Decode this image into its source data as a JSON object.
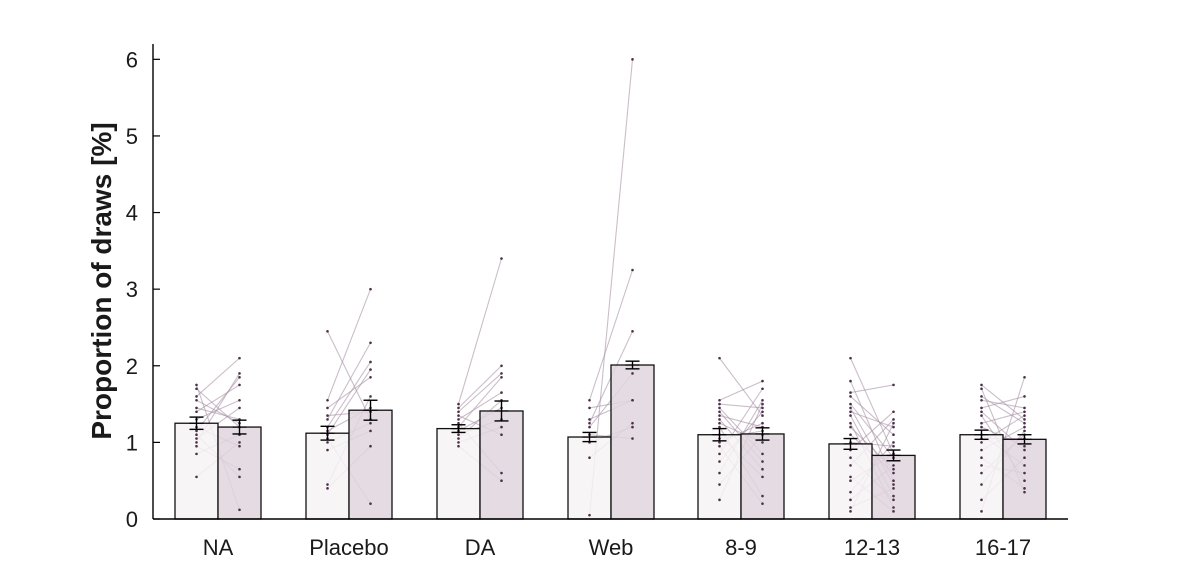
{
  "chart_data": {
    "type": "bar",
    "title": "",
    "xlabel": "",
    "ylabel": "Proportion of draws [%]",
    "ylim": [
      0,
      6.2
    ],
    "yticks": [
      0,
      1,
      2,
      3,
      4,
      5,
      6
    ],
    "categories": [
      "NA",
      "Placebo",
      "DA",
      "Web",
      "8-9",
      "12-13",
      "16-17"
    ],
    "colors": {
      "light": "#f7f3f4",
      "dark": "#e0d5de",
      "line": "#a893a6",
      "dot": "#4a2f48",
      "axis": "#000000"
    },
    "series": [
      {
        "values": [
          1.25,
          1.12,
          1.18,
          1.07,
          1.1,
          0.98,
          1.1
        ],
        "errors": [
          0.08,
          0.09,
          0.05,
          0.06,
          0.08,
          0.07,
          0.06
        ]
      },
      {
        "values": [
          1.2,
          1.42,
          1.41,
          2.01,
          1.11,
          0.83,
          1.04
        ],
        "errors": [
          0.09,
          0.13,
          0.13,
          0.05,
          0.08,
          0.07,
          0.06
        ]
      }
    ],
    "paired_points": [
      [
        [
          1.75,
          0.12
        ],
        [
          0.55,
          1.0
        ],
        [
          1.7,
          1.2
        ],
        [
          1.45,
          1.3
        ],
        [
          1.3,
          1.55
        ],
        [
          1.15,
          1.85
        ],
        [
          1.05,
          1.45
        ],
        [
          1.6,
          2.1
        ],
        [
          0.95,
          0.65
        ],
        [
          1.2,
          0.95
        ],
        [
          0.85,
          1.1
        ],
        [
          1.4,
          1.75
        ],
        [
          1.1,
          0.55
        ],
        [
          1.55,
          1.25
        ],
        [
          1.0,
          1.9
        ]
      ],
      [
        [
          2.45,
          1.3
        ],
        [
          0.45,
          1.6
        ],
        [
          1.15,
          1.45
        ],
        [
          0.4,
          0.95
        ],
        [
          1.55,
          3.0
        ],
        [
          1.3,
          2.3
        ],
        [
          1.2,
          2.05
        ],
        [
          1.0,
          1.25
        ],
        [
          1.45,
          1.85
        ],
        [
          1.05,
          0.2
        ],
        [
          1.35,
          1.4
        ],
        [
          0.9,
          1.15
        ],
        [
          1.1,
          1.95
        ]
      ],
      [
        [
          1.5,
          3.4
        ],
        [
          1.45,
          2.0
        ],
        [
          1.3,
          1.65
        ],
        [
          1.2,
          1.85
        ],
        [
          1.0,
          1.2
        ],
        [
          0.95,
          0.5
        ],
        [
          1.15,
          1.45
        ],
        [
          1.35,
          1.1
        ],
        [
          1.25,
          0.6
        ],
        [
          1.1,
          1.3
        ],
        [
          1.4,
          1.9
        ],
        [
          1.05,
          1.55
        ]
      ],
      [
        [
          0.05,
          6.0
        ],
        [
          1.55,
          3.25
        ],
        [
          1.25,
          2.45
        ],
        [
          1.45,
          1.55
        ],
        [
          0.8,
          1.25
        ],
        [
          1.0,
          1.2
        ],
        [
          1.2,
          1.9
        ],
        [
          1.1,
          1.05
        ],
        [
          1.3,
          1.55
        ]
      ],
      [
        [
          2.1,
          1.35
        ],
        [
          0.25,
          1.5
        ],
        [
          1.55,
          1.8
        ],
        [
          1.4,
          0.75
        ],
        [
          1.2,
          0.3
        ],
        [
          0.75,
          1.4
        ],
        [
          1.45,
          0.85
        ],
        [
          1.0,
          1.25
        ],
        [
          0.95,
          0.2
        ],
        [
          1.35,
          1.2
        ],
        [
          0.45,
          1.1
        ],
        [
          1.1,
          0.55
        ],
        [
          1.5,
          1.45
        ],
        [
          0.85,
          1.7
        ],
        [
          1.25,
          1.0
        ],
        [
          1.3,
          0.65
        ],
        [
          0.6,
          1.55
        ],
        [
          1.05,
          1.15
        ]
      ],
      [
        [
          2.1,
          0.85
        ],
        [
          0.1,
          1.25
        ],
        [
          1.8,
          0.5
        ],
        [
          1.65,
          1.75
        ],
        [
          0.55,
          0.1
        ],
        [
          1.35,
          0.3
        ],
        [
          1.1,
          0.6
        ],
        [
          0.9,
          1.4
        ],
        [
          1.5,
          0.8
        ],
        [
          0.35,
          1.0
        ],
        [
          1.25,
          0.15
        ],
        [
          0.7,
          1.3
        ],
        [
          1.45,
          0.45
        ],
        [
          1.0,
          0.95
        ],
        [
          0.25,
          0.7
        ],
        [
          1.6,
          1.1
        ],
        [
          0.8,
          0.25
        ],
        [
          1.2,
          0.65
        ],
        [
          0.5,
          0.85
        ],
        [
          1.4,
          1.2
        ],
        [
          0.15,
          0.4
        ]
      ],
      [
        [
          1.75,
          1.3
        ],
        [
          0.1,
          1.85
        ],
        [
          1.7,
          0.35
        ],
        [
          1.55,
          1.45
        ],
        [
          1.2,
          0.95
        ],
        [
          0.6,
          1.1
        ],
        [
          1.35,
          0.5
        ],
        [
          0.9,
          1.2
        ],
        [
          1.45,
          1.6
        ],
        [
          1.05,
          1.05
        ],
        [
          0.25,
          0.8
        ],
        [
          1.6,
          1.25
        ],
        [
          0.8,
          0.4
        ],
        [
          1.25,
          1.4
        ],
        [
          1.1,
          0.7
        ],
        [
          0.45,
          1.15
        ],
        [
          1.4,
          0.9
        ],
        [
          1.0,
          1.35
        ],
        [
          0.7,
          0.6
        ]
      ]
    ]
  }
}
